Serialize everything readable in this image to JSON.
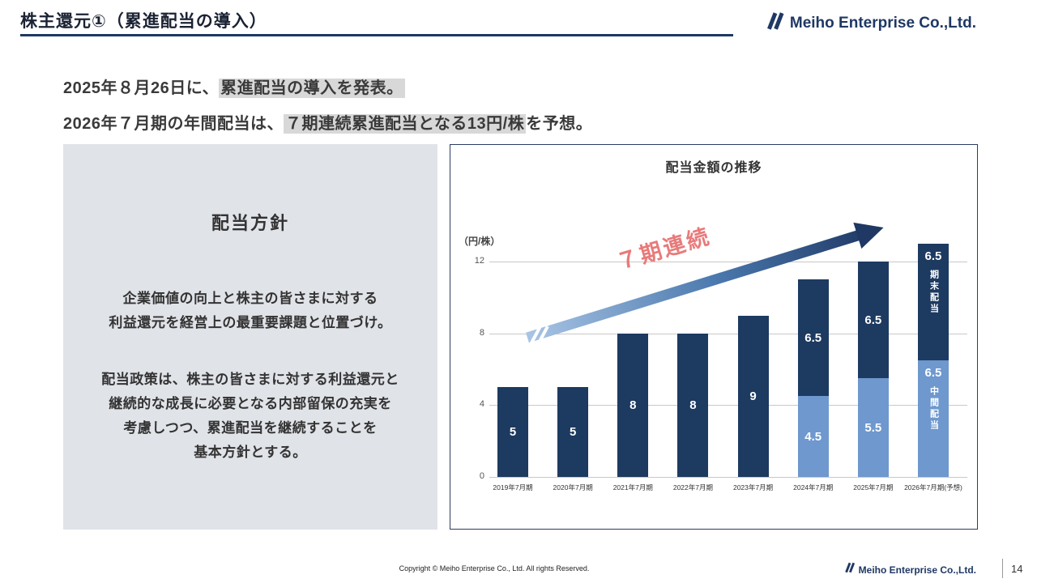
{
  "page": {
    "title": "株主還元①（累進配当の導入）"
  },
  "header": {
    "logo_text": "Meiho Enterprise Co.,Ltd."
  },
  "lead": {
    "line1": [
      {
        "text": "2025年８月26日に、",
        "highlight": false
      },
      {
        "text": "累進配当の導入を発表。",
        "highlight": true
      }
    ],
    "line2": [
      {
        "text": "2026年７月期の年間配当は、",
        "highlight": false
      },
      {
        "text": "７期連続累進配当となる13円/株",
        "highlight": true
      },
      {
        "text": "を予想。",
        "highlight": false
      }
    ]
  },
  "policy_panel": {
    "heading": "配当方針",
    "paragraph1": "企業価値の向上と株主の皆さまに対する\n利益還元を経営上の最重要課題と位置づけ。",
    "paragraph2": "配当政策は、株主の皆さまに対する利益還元と\n継続的な成長に必要となる内部留保の充実を\n考慮しつつ、累進配当を継続することを\n基本方針とする。"
  },
  "chart_data": {
    "type": "bar",
    "stacked": true,
    "title": "配当金額の推移",
    "ylabel": "（円/株）",
    "annotation": "７期連続",
    "ylim": [
      0,
      13
    ],
    "yticks": [
      0,
      4,
      8,
      12
    ],
    "grid": true,
    "legend_position": "none",
    "categories": [
      "2019年7月期",
      "2020年7月期",
      "2021年7月期",
      "2022年7月期",
      "2023年7月期",
      "2024年7月期",
      "2025年7月期",
      "2026年7月期(予想)"
    ],
    "series": [
      {
        "name": "中間配当",
        "color": "#6e98ce",
        "values": [
          0,
          0,
          0,
          0,
          0,
          4.5,
          5.5,
          6.5
        ]
      },
      {
        "name": "期末配当",
        "color": "#1d3a60",
        "values": [
          5,
          5,
          8,
          8,
          9,
          6.5,
          6.5,
          6.5
        ]
      }
    ],
    "totals": [
      5,
      5,
      8,
      8,
      9,
      11,
      12,
      13
    ],
    "forecast_segment_labels": [
      "中間配当",
      "期末配当"
    ],
    "colors": {
      "annotation": "#e87a7a",
      "arrow_start": "#a9c5e5",
      "arrow_end": "#1f3864",
      "highlight": "#d8d8d8",
      "navy": "#1f3864"
    }
  },
  "footer": {
    "copyright": "Copyright © Meiho Enterprise Co., Ltd. All rights Reserved.",
    "logo_text": "Meiho Enterprise Co.,Ltd.",
    "page_number": "14"
  }
}
